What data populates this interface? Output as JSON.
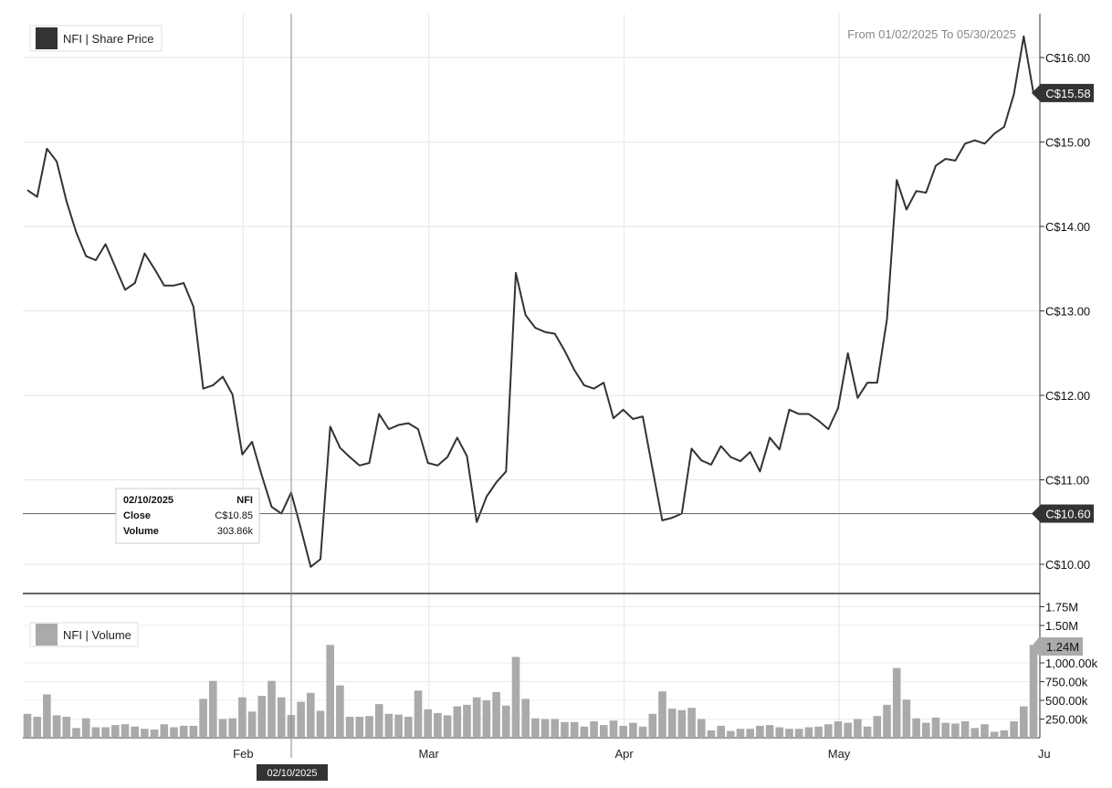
{
  "chart_data": [
    {
      "type": "line",
      "legend": "NFI | Share Price",
      "date_range": "From 01/02/2025 To 05/30/2025",
      "y_ticks": [
        "C$10.00",
        "C$11.00",
        "C$12.00",
        "C$13.00",
        "C$14.00",
        "C$15.00",
        "C$16.00"
      ],
      "y_tick_values": [
        10,
        11,
        12,
        13,
        14,
        15,
        16
      ],
      "ylim": [
        9.65,
        16.5
      ],
      "last_label": "C$15.58",
      "last_value": 15.58,
      "crosshair_label": "C$10.60",
      "crosshair_value": 10.6,
      "values": [
        14.43,
        14.35,
        14.92,
        14.77,
        14.3,
        13.93,
        13.65,
        13.6,
        13.79,
        13.52,
        13.25,
        13.33,
        13.68,
        13.5,
        13.3,
        13.3,
        13.33,
        13.05,
        12.08,
        12.12,
        12.22,
        12.01,
        11.3,
        11.45,
        11.05,
        10.68,
        10.6,
        10.85,
        10.42,
        9.97,
        10.06,
        11.63,
        11.38,
        11.27,
        11.17,
        11.2,
        11.78,
        11.6,
        11.65,
        11.67,
        11.6,
        11.2,
        11.17,
        11.27,
        11.5,
        11.28,
        10.5,
        10.8,
        10.97,
        11.1,
        13.45,
        12.95,
        12.8,
        12.75,
        12.73,
        12.53,
        12.3,
        12.12,
        12.08,
        12.15,
        11.73,
        11.83,
        11.72,
        11.75,
        11.13,
        10.52,
        10.55,
        10.6,
        11.37,
        11.23,
        11.18,
        11.4,
        11.27,
        11.22,
        11.33,
        11.1,
        11.5,
        11.36,
        11.83,
        11.78,
        11.78,
        11.7,
        11.6,
        11.85,
        12.5,
        11.97,
        12.15,
        12.15,
        12.9,
        14.55,
        14.2,
        14.42,
        14.4,
        14.72,
        14.8,
        14.78,
        14.98,
        15.02,
        14.98,
        15.1,
        15.18,
        15.57,
        16.25,
        15.58
      ]
    },
    {
      "type": "bar",
      "legend": "NFI | Volume",
      "y_ticks": [
        "250.00k",
        "500.00k",
        "750.00k",
        "1,000.00k",
        "1.50M",
        "1.75M"
      ],
      "y_tick_values": [
        250000,
        500000,
        750000,
        1000000,
        1500000,
        1750000
      ],
      "last_label": "1.24M",
      "values": [
        320000,
        280000,
        580000,
        300000,
        280000,
        130000,
        260000,
        140000,
        140000,
        170000,
        180000,
        150000,
        120000,
        110000,
        180000,
        140000,
        160000,
        160000,
        520000,
        760000,
        250000,
        260000,
        540000,
        350000,
        560000,
        760000,
        540000,
        303860,
        480000,
        600000,
        360000,
        1240000,
        700000,
        280000,
        280000,
        290000,
        450000,
        320000,
        310000,
        280000,
        630000,
        380000,
        330000,
        300000,
        420000,
        440000,
        540000,
        500000,
        610000,
        430000,
        1080000,
        520000,
        260000,
        250000,
        250000,
        210000,
        210000,
        150000,
        220000,
        170000,
        230000,
        160000,
        200000,
        150000,
        320000,
        620000,
        390000,
        370000,
        400000,
        250000,
        100000,
        160000,
        90000,
        120000,
        120000,
        160000,
        170000,
        140000,
        120000,
        120000,
        140000,
        150000,
        180000,
        220000,
        200000,
        250000,
        150000,
        290000,
        440000,
        930000,
        510000,
        260000,
        200000,
        270000,
        200000,
        190000,
        220000,
        130000,
        180000,
        80000,
        100000,
        220000,
        420000,
        1240000
      ]
    }
  ],
  "x_labels": [
    "Feb",
    "Mar",
    "Apr",
    "May",
    "Ju"
  ],
  "tooltip": {
    "date": "02/10/2025",
    "symbol": "NFI",
    "close_label": "Close",
    "close_value": "C$10.85",
    "volume_label": "Volume",
    "volume_value": "303.86k"
  },
  "crosshair_date": "02/10/2025"
}
